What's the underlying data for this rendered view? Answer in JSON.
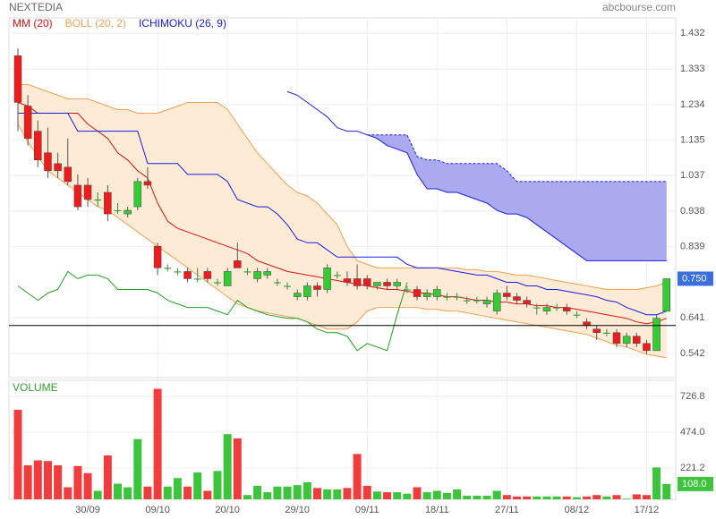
{
  "chart_data": [
    {
      "type": "candlestick",
      "title": "NEXTEDIA",
      "source": "abcbourse.com",
      "ylim": [
        0.475,
        1.475
      ],
      "yticks": [
        1.432,
        1.333,
        1.234,
        1.135,
        1.037,
        0.938,
        0.839,
        0.641,
        0.542
      ],
      "grid": true,
      "up_color": "#33cc33",
      "down_color": "#ee1c1c",
      "flat_color": "#2e8b2e",
      "hline": 0.62,
      "price_tag": {
        "value": 0.75,
        "label": "0.750",
        "color": "#3a6fe0"
      },
      "ohlc": [
        [
          1.37,
          1.39,
          1.16,
          1.24
        ],
        [
          1.23,
          1.26,
          1.12,
          1.14
        ],
        [
          1.16,
          1.19,
          1.06,
          1.08
        ],
        [
          1.1,
          1.17,
          1.03,
          1.05
        ],
        [
          1.07,
          1.1,
          1.03,
          1.05
        ],
        [
          1.06,
          1.14,
          1.01,
          1.02
        ],
        [
          1.01,
          1.04,
          0.94,
          0.95
        ],
        [
          1.01,
          1.03,
          0.95,
          0.97
        ],
        [
          0.97,
          0.99,
          0.95,
          0.97
        ],
        [
          0.99,
          1.01,
          0.91,
          0.93
        ],
        [
          0.94,
          0.96,
          0.93,
          0.94
        ],
        [
          0.93,
          0.95,
          0.92,
          0.94
        ],
        [
          0.95,
          1.03,
          0.94,
          1.02
        ],
        [
          1.02,
          1.06,
          1.0,
          1.01
        ],
        [
          0.84,
          0.85,
          0.76,
          0.78
        ],
        [
          0.78,
          0.79,
          0.77,
          0.78
        ],
        [
          0.77,
          0.78,
          0.76,
          0.77
        ],
        [
          0.77,
          0.78,
          0.74,
          0.75
        ],
        [
          0.75,
          0.78,
          0.74,
          0.75
        ],
        [
          0.77,
          0.78,
          0.74,
          0.75
        ],
        [
          0.74,
          0.75,
          0.73,
          0.74
        ],
        [
          0.73,
          0.78,
          0.73,
          0.77
        ],
        [
          0.8,
          0.85,
          0.78,
          0.78
        ],
        [
          0.77,
          0.78,
          0.76,
          0.77
        ],
        [
          0.75,
          0.78,
          0.74,
          0.77
        ],
        [
          0.76,
          0.78,
          0.75,
          0.77
        ],
        [
          0.74,
          0.75,
          0.73,
          0.74
        ],
        [
          0.73,
          0.74,
          0.72,
          0.73
        ],
        [
          0.7,
          0.72,
          0.69,
          0.71
        ],
        [
          0.7,
          0.74,
          0.69,
          0.73
        ],
        [
          0.73,
          0.74,
          0.7,
          0.72
        ],
        [
          0.72,
          0.79,
          0.71,
          0.78
        ],
        [
          0.76,
          0.77,
          0.75,
          0.76
        ],
        [
          0.75,
          0.77,
          0.73,
          0.74
        ],
        [
          0.75,
          0.79,
          0.72,
          0.73
        ],
        [
          0.75,
          0.76,
          0.72,
          0.73
        ],
        [
          0.73,
          0.74,
          0.72,
          0.74
        ],
        [
          0.74,
          0.75,
          0.72,
          0.73
        ],
        [
          0.73,
          0.75,
          0.72,
          0.74
        ],
        [
          0.72,
          0.73,
          0.71,
          0.72
        ],
        [
          0.72,
          0.73,
          0.69,
          0.7
        ],
        [
          0.7,
          0.72,
          0.69,
          0.71
        ],
        [
          0.7,
          0.73,
          0.69,
          0.72
        ],
        [
          0.7,
          0.71,
          0.69,
          0.7
        ],
        [
          0.7,
          0.71,
          0.69,
          0.7
        ],
        [
          0.69,
          0.7,
          0.68,
          0.69
        ],
        [
          0.69,
          0.7,
          0.68,
          0.69
        ],
        [
          0.68,
          0.7,
          0.67,
          0.69
        ],
        [
          0.66,
          0.72,
          0.65,
          0.71
        ],
        [
          0.71,
          0.73,
          0.69,
          0.7
        ],
        [
          0.7,
          0.71,
          0.68,
          0.69
        ],
        [
          0.69,
          0.7,
          0.67,
          0.68
        ],
        [
          0.67,
          0.68,
          0.65,
          0.67
        ],
        [
          0.66,
          0.68,
          0.65,
          0.67
        ],
        [
          0.67,
          0.68,
          0.66,
          0.67
        ],
        [
          0.67,
          0.68,
          0.65,
          0.66
        ],
        [
          0.65,
          0.66,
          0.64,
          0.65
        ],
        [
          0.63,
          0.64,
          0.61,
          0.62
        ],
        [
          0.61,
          0.62,
          0.58,
          0.6
        ],
        [
          0.6,
          0.61,
          0.59,
          0.6
        ],
        [
          0.6,
          0.61,
          0.56,
          0.57
        ],
        [
          0.57,
          0.6,
          0.56,
          0.59
        ],
        [
          0.59,
          0.6,
          0.56,
          0.57
        ],
        [
          0.57,
          0.58,
          0.54,
          0.55
        ],
        [
          0.55,
          0.65,
          0.55,
          0.64
        ],
        [
          0.66,
          0.75,
          0.66,
          0.75
        ]
      ],
      "indicators": [
        {
          "name": "MM (20)",
          "color": "#e01010",
          "lines": [
            {
              "values": [
                1.24,
                1.23,
                1.21,
                1.21,
                1.21,
                1.21,
                1.21,
                1.18,
                1.16,
                1.14,
                1.1,
                1.08,
                1.05,
                1.03,
                0.96,
                0.91,
                0.89,
                0.88,
                0.87,
                0.86,
                0.85,
                0.84,
                0.83,
                0.82,
                0.8,
                0.79,
                0.78,
                0.77,
                0.765,
                0.76,
                0.755,
                0.75,
                0.745,
                0.74,
                0.735,
                0.73,
                0.725,
                0.72,
                0.72,
                0.715,
                0.71,
                0.71,
                0.705,
                0.7,
                0.7,
                0.695,
                0.69,
                0.69,
                0.685,
                0.685,
                0.68,
                0.68,
                0.675,
                0.675,
                0.67,
                0.67,
                0.665,
                0.66,
                0.655,
                0.65,
                0.645,
                0.64,
                0.63,
                0.625,
                0.63,
                0.64
              ]
            }
          ]
        },
        {
          "name": "BOLL (20, 2)",
          "color": "#f0a050",
          "fill": "#fdebd6",
          "lines": [
            {
              "values": [
                1.29,
                1.29,
                1.28,
                1.27,
                1.26,
                1.25,
                1.25,
                1.25,
                1.24,
                1.23,
                1.22,
                1.22,
                1.21,
                1.21,
                1.21,
                1.22,
                1.23,
                1.24,
                1.24,
                1.24,
                1.24,
                1.22,
                1.18,
                1.14,
                1.1,
                1.07,
                1.04,
                1.01,
                0.99,
                0.98,
                0.96,
                0.93,
                0.9,
                0.84,
                0.8,
                0.79,
                0.78,
                0.78,
                0.78,
                0.78,
                0.78,
                0.78,
                0.78,
                0.78,
                0.78,
                0.775,
                0.775,
                0.77,
                0.77,
                0.765,
                0.76,
                0.76,
                0.755,
                0.75,
                0.745,
                0.74,
                0.735,
                0.73,
                0.725,
                0.72,
                0.72,
                0.72,
                0.72,
                0.725,
                0.73,
                0.74
              ]
            },
            {
              "values": [
                1.18,
                1.13,
                1.09,
                1.05,
                1.03,
                1.01,
                0.99,
                0.97,
                0.95,
                0.94,
                0.92,
                0.9,
                0.88,
                0.86,
                0.84,
                0.82,
                0.8,
                0.78,
                0.76,
                0.74,
                0.72,
                0.7,
                0.68,
                0.67,
                0.66,
                0.655,
                0.65,
                0.645,
                0.64,
                0.63,
                0.62,
                0.61,
                0.61,
                0.61,
                0.63,
                0.66,
                0.67,
                0.67,
                0.67,
                0.67,
                0.67,
                0.665,
                0.665,
                0.66,
                0.66,
                0.655,
                0.65,
                0.645,
                0.64,
                0.635,
                0.63,
                0.625,
                0.62,
                0.615,
                0.61,
                0.605,
                0.6,
                0.595,
                0.585,
                0.575,
                0.565,
                0.56,
                0.55,
                0.54,
                0.535,
                0.53
              ]
            }
          ]
        },
        {
          "name": "ICHIMOKU (26, 9)",
          "color": "#1a1ae6",
          "cloud_fill": "#aaaaf0",
          "lines": [
            {
              "values": [
                1.21,
                1.21,
                1.21,
                1.21,
                1.21,
                1.21,
                1.16,
                1.16,
                1.16,
                1.16,
                1.16,
                1.16,
                1.16,
                1.07,
                1.07,
                1.07,
                1.07,
                1.04,
                1.04,
                1.04,
                1.04,
                1.02,
                0.97,
                0.96,
                0.95,
                0.95,
                0.93,
                0.9,
                0.86,
                0.85,
                0.85,
                0.83,
                0.81,
                0.81,
                0.81,
                0.81,
                0.81,
                0.81,
                0.81,
                0.79,
                0.78,
                0.78,
                0.78,
                0.775,
                0.77,
                0.765,
                0.76,
                0.76,
                0.75,
                0.74,
                0.74,
                0.73,
                0.73,
                0.72,
                0.72,
                0.715,
                0.71,
                0.705,
                0.7,
                0.69,
                0.685,
                0.67,
                0.66,
                0.65,
                0.65,
                0.66
              ]
            },
            {
              "values": [
                null,
                null,
                null,
                null,
                null,
                null,
                null,
                null,
                null,
                null,
                null,
                null,
                null,
                null,
                null,
                null,
                null,
                null,
                null,
                null,
                null,
                null,
                null,
                null,
                null,
                null,
                null,
                1.27,
                1.26,
                1.24,
                1.22,
                1.2,
                1.17,
                1.16,
                1.16,
                1.15,
                1.14,
                1.12,
                1.11,
                1.1,
                1.04,
                1.0,
                1.0,
                0.99,
                0.99,
                0.98,
                0.97,
                0.96,
                0.94,
                0.93,
                0.93,
                0.92,
                0.9,
                0.88,
                0.86,
                0.84,
                0.82,
                0.8,
                0.8,
                0.8,
                0.8,
                0.8,
                0.8,
                0.8,
                0.8,
                0.8
              ]
            },
            {
              "dashed": true,
              "values": [
                null,
                null,
                null,
                null,
                null,
                null,
                null,
                null,
                null,
                null,
                null,
                null,
                null,
                null,
                null,
                null,
                null,
                null,
                null,
                null,
                null,
                null,
                null,
                null,
                null,
                null,
                null,
                null,
                null,
                null,
                null,
                null,
                null,
                null,
                null,
                1.15,
                1.15,
                1.15,
                1.15,
                1.15,
                1.09,
                1.08,
                1.08,
                1.07,
                1.07,
                1.07,
                1.07,
                1.07,
                1.07,
                1.05,
                1.02,
                1.02,
                1.02,
                1.02,
                1.02,
                1.02,
                1.02,
                1.02,
                1.02,
                1.02,
                1.02,
                1.02,
                1.02,
                1.02,
                1.02,
                1.02
              ]
            },
            {
              "color": "#1f9e1f",
              "values": [
                0.73,
                0.71,
                0.69,
                0.71,
                0.72,
                0.77,
                0.75,
                0.76,
                0.76,
                0.75,
                0.72,
                0.72,
                0.72,
                0.72,
                0.71,
                0.69,
                0.68,
                0.67,
                0.67,
                0.67,
                0.66,
                0.65,
                0.69,
                0.67,
                0.66,
                0.65,
                0.645,
                0.64,
                0.64,
                0.63,
                0.61,
                0.6,
                0.6,
                0.59,
                0.55,
                0.57,
                0.56,
                0.55,
                0.65,
                0.74,
                null,
                null,
                null,
                null,
                null,
                null,
                null,
                null,
                null,
                null,
                null,
                null,
                null,
                null,
                null,
                null,
                null,
                null,
                null,
                null,
                null,
                null,
                null,
                null,
                null,
                null
              ]
            }
          ]
        }
      ]
    },
    {
      "type": "bar",
      "title": "VOLUME",
      "title_color": "#2ca02c",
      "ylim": [
        0,
        840
      ],
      "yticks": [
        726.8,
        {
          "value": 474,
          "label": "474.0"
        },
        221.2
      ],
      "grid": true,
      "up_color": "#3cc43c",
      "down_color": "#f03c3c",
      "volume_tag": {
        "value": 108,
        "label": "108.0",
        "color": "#3cc43c"
      },
      "categories": [
        null,
        null,
        null,
        null,
        null,
        null,
        null,
        "30/09",
        null,
        null,
        null,
        null,
        null,
        null,
        "09/10",
        null,
        null,
        null,
        null,
        null,
        null,
        "20/10",
        null,
        null,
        null,
        null,
        null,
        null,
        "29/10",
        null,
        null,
        null,
        null,
        null,
        null,
        "09/11",
        null,
        null,
        null,
        null,
        null,
        null,
        "18/11",
        null,
        null,
        null,
        null,
        null,
        null,
        "27/11",
        null,
        null,
        null,
        null,
        null,
        null,
        "08/12",
        null,
        null,
        null,
        null,
        null,
        null,
        "17/12",
        null,
        null
      ],
      "values": [
        632,
        240,
        275,
        270,
        240,
        85,
        235,
        185,
        60,
        310,
        110,
        85,
        425,
        90,
        780,
        90,
        150,
        90,
        190,
        60,
        200,
        460,
        430,
        30,
        95,
        50,
        90,
        90,
        100,
        120,
        80,
        70,
        70,
        80,
        320,
        95,
        55,
        50,
        50,
        40,
        85,
        50,
        60,
        45,
        70,
        25,
        25,
        25,
        60,
        30,
        20,
        20,
        20,
        20,
        20,
        20,
        15,
        20,
        30,
        20,
        30,
        5,
        35,
        30,
        225,
        108
      ]
    }
  ]
}
